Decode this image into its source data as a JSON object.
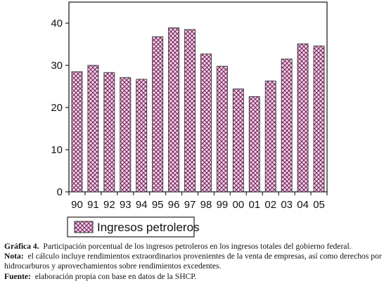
{
  "chart_data": {
    "type": "bar",
    "categories": [
      "90",
      "91",
      "92",
      "93",
      "94",
      "95",
      "96",
      "97",
      "98",
      "99",
      "00",
      "01",
      "02",
      "03",
      "04",
      "05"
    ],
    "series": [
      {
        "name": "Ingresos petroleros",
        "values": [
          28.5,
          30.0,
          28.3,
          27.1,
          26.7,
          36.8,
          38.9,
          38.5,
          32.7,
          29.8,
          24.4,
          22.6,
          26.3,
          31.5,
          35.1,
          34.6
        ]
      }
    ],
    "ylim": [
      0,
      45
    ],
    "yticks": [
      0,
      10,
      20,
      30,
      40
    ],
    "title": "",
    "xlabel": "",
    "ylabel": "",
    "legend": "bottom-center",
    "grid": false,
    "bar_fill_color": "#ffd2f0",
    "bar_hatch_color": "#6a2a55"
  },
  "caption": {
    "figure_label": "Gráfica 4.",
    "figure_text": "Participación porcentual de los ingresos petroleros en los ingresos totales del gobierno federal.",
    "note_label": "Nota:",
    "note_text": "el cálculo incluye rendimientos extraordinarios provenientes de la venta de empresas, así como derechos por hidrocarburos y aprovechamientos sobre rendimientos excedentes.",
    "source_label": "Fuente:",
    "source_text": "elaboración propia con base en datos de la SHCP."
  }
}
